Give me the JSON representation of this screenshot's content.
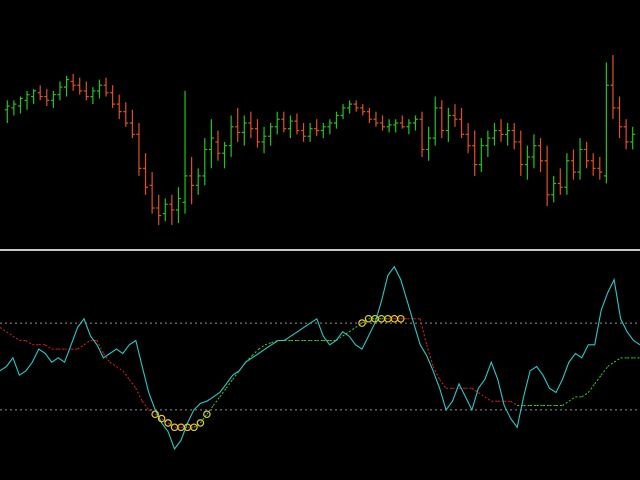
{
  "colors": {
    "background": "#000000",
    "bull": "#22c41e",
    "bear": "#e0521c",
    "separator": "#c8c8c8",
    "oscillator": "#28c8c8",
    "signal_up": "#2fd22f",
    "signal_down": "#e02020",
    "level_line": "#909090",
    "marker": "#e8d020"
  },
  "chart_data": [
    {
      "type": "ohlc",
      "panel": "price",
      "ylim": [
        0,
        100
      ],
      "grid": false,
      "bars": [
        {
          "o": 45,
          "h": 50,
          "l": 38,
          "c": 47
        },
        {
          "o": 46,
          "h": 50,
          "l": 42,
          "c": 48
        },
        {
          "o": 47,
          "h": 52,
          "l": 43,
          "c": 51
        },
        {
          "o": 50,
          "h": 55,
          "l": 45,
          "c": 53
        },
        {
          "o": 52,
          "h": 56,
          "l": 48,
          "c": 55
        },
        {
          "o": 54,
          "h": 58,
          "l": 50,
          "c": 52
        },
        {
          "o": 52,
          "h": 56,
          "l": 47,
          "c": 50
        },
        {
          "o": 50,
          "h": 55,
          "l": 46,
          "c": 53
        },
        {
          "o": 53,
          "h": 60,
          "l": 50,
          "c": 57
        },
        {
          "o": 57,
          "h": 63,
          "l": 52,
          "c": 61
        },
        {
          "o": 60,
          "h": 64,
          "l": 55,
          "c": 58
        },
        {
          "o": 58,
          "h": 62,
          "l": 53,
          "c": 55
        },
        {
          "o": 55,
          "h": 60,
          "l": 50,
          "c": 52
        },
        {
          "o": 52,
          "h": 57,
          "l": 48,
          "c": 55
        },
        {
          "o": 55,
          "h": 61,
          "l": 51,
          "c": 58
        },
        {
          "o": 58,
          "h": 62,
          "l": 52,
          "c": 54
        },
        {
          "o": 54,
          "h": 58,
          "l": 46,
          "c": 48
        },
        {
          "o": 48,
          "h": 53,
          "l": 40,
          "c": 44
        },
        {
          "o": 44,
          "h": 49,
          "l": 36,
          "c": 38
        },
        {
          "o": 38,
          "h": 45,
          "l": 30,
          "c": 32
        },
        {
          "o": 32,
          "h": 38,
          "l": 10,
          "c": 14
        },
        {
          "o": 14,
          "h": 22,
          "l": 0,
          "c": 4
        },
        {
          "o": 5,
          "h": 12,
          "l": -10,
          "c": -7
        },
        {
          "o": -7,
          "h": 0,
          "l": -16,
          "c": -11
        },
        {
          "o": -10,
          "h": -2,
          "l": -14,
          "c": -5
        },
        {
          "o": -5,
          "h": 0,
          "l": -16,
          "c": -8
        },
        {
          "o": -8,
          "h": 4,
          "l": -15,
          "c": -2
        },
        {
          "o": -4,
          "h": 55,
          "l": -10,
          "c": 10
        },
        {
          "o": 10,
          "h": 20,
          "l": -5,
          "c": 5
        },
        {
          "o": 5,
          "h": 14,
          "l": 0,
          "c": 10
        },
        {
          "o": 10,
          "h": 30,
          "l": 5,
          "c": 24
        },
        {
          "o": 24,
          "h": 40,
          "l": 14,
          "c": 30
        },
        {
          "o": 28,
          "h": 34,
          "l": 18,
          "c": 22
        },
        {
          "o": 22,
          "h": 28,
          "l": 14,
          "c": 26
        },
        {
          "o": 26,
          "h": 42,
          "l": 20,
          "c": 36
        },
        {
          "o": 36,
          "h": 46,
          "l": 28,
          "c": 33
        },
        {
          "o": 33,
          "h": 42,
          "l": 26,
          "c": 38
        },
        {
          "o": 38,
          "h": 44,
          "l": 30,
          "c": 35
        },
        {
          "o": 35,
          "h": 40,
          "l": 25,
          "c": 28
        },
        {
          "o": 28,
          "h": 36,
          "l": 22,
          "c": 31
        },
        {
          "o": 31,
          "h": 38,
          "l": 26,
          "c": 36
        },
        {
          "o": 36,
          "h": 44,
          "l": 32,
          "c": 40
        },
        {
          "o": 40,
          "h": 44,
          "l": 33,
          "c": 35
        },
        {
          "o": 35,
          "h": 42,
          "l": 30,
          "c": 39
        },
        {
          "o": 39,
          "h": 43,
          "l": 32,
          "c": 34
        },
        {
          "o": 34,
          "h": 38,
          "l": 28,
          "c": 31
        },
        {
          "o": 31,
          "h": 38,
          "l": 28,
          "c": 35
        },
        {
          "o": 35,
          "h": 40,
          "l": 31,
          "c": 34
        },
        {
          "o": 34,
          "h": 38,
          "l": 30,
          "c": 36
        },
        {
          "o": 36,
          "h": 40,
          "l": 32,
          "c": 38
        },
        {
          "o": 38,
          "h": 44,
          "l": 35,
          "c": 42
        },
        {
          "o": 42,
          "h": 48,
          "l": 40,
          "c": 46
        },
        {
          "o": 46,
          "h": 50,
          "l": 43,
          "c": 48
        },
        {
          "o": 48,
          "h": 50,
          "l": 44,
          "c": 46
        },
        {
          "o": 46,
          "h": 48,
          "l": 42,
          "c": 44
        },
        {
          "o": 44,
          "h": 46,
          "l": 38,
          "c": 40
        },
        {
          "o": 40,
          "h": 44,
          "l": 36,
          "c": 38
        },
        {
          "o": 38,
          "h": 42,
          "l": 34,
          "c": 36
        },
        {
          "o": 36,
          "h": 40,
          "l": 33,
          "c": 37
        },
        {
          "o": 37,
          "h": 40,
          "l": 33,
          "c": 38
        },
        {
          "o": 38,
          "h": 42,
          "l": 35,
          "c": 36
        },
        {
          "o": 36,
          "h": 40,
          "l": 32,
          "c": 38
        },
        {
          "o": 38,
          "h": 42,
          "l": 34,
          "c": 40
        },
        {
          "o": 40,
          "h": 44,
          "l": 20,
          "c": 24
        },
        {
          "o": 24,
          "h": 36,
          "l": 18,
          "c": 30
        },
        {
          "o": 30,
          "h": 52,
          "l": 26,
          "c": 46
        },
        {
          "o": 46,
          "h": 50,
          "l": 30,
          "c": 34
        },
        {
          "o": 34,
          "h": 46,
          "l": 28,
          "c": 42
        },
        {
          "o": 42,
          "h": 48,
          "l": 36,
          "c": 40
        },
        {
          "o": 40,
          "h": 46,
          "l": 30,
          "c": 32
        },
        {
          "o": 32,
          "h": 38,
          "l": 22,
          "c": 26
        },
        {
          "o": 26,
          "h": 34,
          "l": 10,
          "c": 16
        },
        {
          "o": 16,
          "h": 30,
          "l": 12,
          "c": 26
        },
        {
          "o": 26,
          "h": 34,
          "l": 20,
          "c": 30
        },
        {
          "o": 30,
          "h": 38,
          "l": 26,
          "c": 34
        },
        {
          "o": 34,
          "h": 40,
          "l": 28,
          "c": 32
        },
        {
          "o": 32,
          "h": 38,
          "l": 26,
          "c": 34
        },
        {
          "o": 34,
          "h": 38,
          "l": 24,
          "c": 28
        },
        {
          "o": 28,
          "h": 34,
          "l": 10,
          "c": 16
        },
        {
          "o": 16,
          "h": 26,
          "l": 8,
          "c": 20
        },
        {
          "o": 20,
          "h": 32,
          "l": 14,
          "c": 26
        },
        {
          "o": 26,
          "h": 30,
          "l": 12,
          "c": 18
        },
        {
          "o": 18,
          "h": 26,
          "l": -6,
          "c": 0
        },
        {
          "o": 0,
          "h": 10,
          "l": -4,
          "c": 6
        },
        {
          "o": 6,
          "h": 14,
          "l": 0,
          "c": 4
        },
        {
          "o": 4,
          "h": 22,
          "l": 0,
          "c": 18
        },
        {
          "o": 18,
          "h": 24,
          "l": 8,
          "c": 12
        },
        {
          "o": 12,
          "h": 30,
          "l": 8,
          "c": 24
        },
        {
          "o": 24,
          "h": 28,
          "l": 14,
          "c": 18
        },
        {
          "o": 18,
          "h": 22,
          "l": 10,
          "c": 14
        },
        {
          "o": 14,
          "h": 20,
          "l": 8,
          "c": 12
        },
        {
          "o": 10,
          "h": 70,
          "l": 6,
          "c": 58
        },
        {
          "o": 58,
          "h": 74,
          "l": 40,
          "c": 46
        },
        {
          "o": 46,
          "h": 52,
          "l": 30,
          "c": 36
        },
        {
          "o": 36,
          "h": 40,
          "l": 24,
          "c": 28
        },
        {
          "o": 28,
          "h": 36,
          "l": 24,
          "c": 32
        }
      ]
    },
    {
      "type": "line",
      "panel": "oscillator",
      "ylim": [
        0,
        100
      ],
      "levels": [
        70,
        30
      ],
      "grid": false,
      "series": [
        {
          "key": "oscillator",
          "values": [
            48,
            50,
            54,
            46,
            48,
            52,
            58,
            56,
            52,
            54,
            52,
            60,
            68,
            72,
            64,
            60,
            54,
            56,
            58,
            56,
            60,
            62,
            50,
            38,
            30,
            24,
            20,
            12,
            16,
            24,
            30,
            33,
            34,
            36,
            38,
            42,
            46,
            48,
            52,
            54,
            56,
            58,
            60,
            62,
            62,
            64,
            66,
            68,
            70,
            72,
            64,
            60,
            62,
            66,
            64,
            60,
            58,
            64,
            70,
            80,
            92,
            96,
            90,
            80,
            70,
            60,
            55,
            48,
            40,
            30,
            34,
            42,
            36,
            30,
            40,
            44,
            52,
            44,
            32,
            26,
            22,
            36,
            48,
            50,
            46,
            40,
            38,
            44,
            52,
            56,
            54,
            60,
            60,
            76,
            84,
            90,
            72,
            66,
            62,
            60
          ]
        },
        {
          "key": "signal",
          "values": [
            68,
            66,
            64,
            62,
            62,
            60,
            60,
            60,
            58,
            58,
            58,
            58,
            58,
            60,
            62,
            62,
            56,
            52,
            50,
            48,
            44,
            40,
            34,
            30,
            28,
            26,
            24,
            22,
            22,
            22,
            22,
            24,
            28,
            32,
            36,
            40,
            44,
            48,
            52,
            55,
            58,
            60,
            61,
            62,
            62,
            62,
            62,
            62,
            62,
            62,
            62,
            62,
            62,
            64,
            66,
            68,
            70,
            72,
            72,
            72,
            72,
            72,
            72,
            72,
            72,
            72,
            60,
            50,
            44,
            40,
            40,
            40,
            40,
            40,
            38,
            36,
            34,
            34,
            34,
            34,
            32,
            32,
            32,
            32,
            32,
            32,
            32,
            32,
            34,
            36,
            36,
            38,
            42,
            46,
            50,
            52,
            54,
            54,
            54,
            54
          ],
          "trend": [
            "down",
            "down",
            "down",
            "down",
            "down",
            "down",
            "down",
            "down",
            "down",
            "down",
            "down",
            "down",
            "down",
            "down",
            "down",
            "down",
            "down",
            "down",
            "down",
            "down",
            "down",
            "down",
            "down",
            "down",
            "down",
            "down",
            "down",
            "down",
            "down",
            "down",
            "up",
            "up",
            "up",
            "up",
            "up",
            "up",
            "up",
            "up",
            "up",
            "up",
            "up",
            "up",
            "up",
            "up",
            "up",
            "up",
            "up",
            "up",
            "up",
            "up",
            "up",
            "up",
            "up",
            "up",
            "up",
            "up",
            "up",
            "up",
            "up",
            "up",
            "down",
            "down",
            "down",
            "down",
            "down",
            "down",
            "down",
            "down",
            "down",
            "down",
            "down",
            "down",
            "down",
            "down",
            "down",
            "down",
            "down",
            "down",
            "down",
            "down",
            "up",
            "up",
            "up",
            "up",
            "up",
            "up",
            "up",
            "up",
            "up",
            "up",
            "up",
            "up",
            "up",
            "up",
            "up",
            "up",
            "up",
            "up",
            "up",
            "up"
          ]
        }
      ],
      "markers_bottom": [
        24,
        25,
        26,
        27,
        28,
        29,
        30,
        31,
        32
      ],
      "markers_top": [
        56,
        57,
        58,
        59,
        60,
        61,
        62
      ]
    }
  ]
}
